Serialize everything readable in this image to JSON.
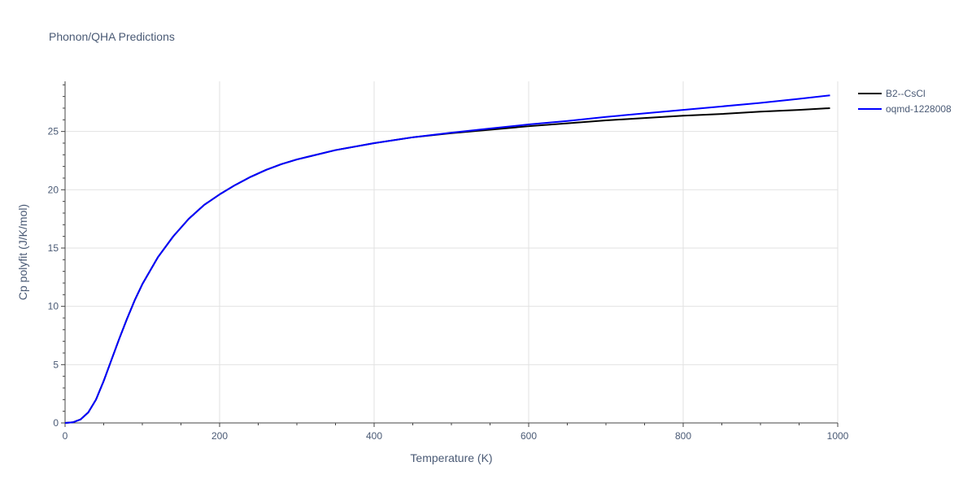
{
  "chart_data": {
    "type": "line",
    "title": "Phonon/QHA Predictions",
    "xlabel": "Temperature (K)",
    "ylabel": "Cp polyfit (J/K/mol)",
    "xlim": [
      0,
      1000
    ],
    "ylim": [
      0,
      29.3
    ],
    "x_major_ticks": [
      0,
      200,
      400,
      600,
      800,
      1000
    ],
    "x_minor_ticks": [
      50,
      100,
      150,
      250,
      300,
      350,
      450,
      500,
      550,
      650,
      700,
      750,
      850,
      900,
      950
    ],
    "y_major_ticks": [
      0,
      5,
      10,
      15,
      20,
      25
    ],
    "y_minor_ticks": [
      1,
      2,
      3,
      4,
      6,
      7,
      8,
      9,
      11,
      12,
      13,
      14,
      16,
      17,
      18,
      19,
      21,
      22,
      23,
      24,
      26,
      27,
      28,
      29
    ],
    "grid": true,
    "legend_position": "top-right",
    "series": [
      {
        "name": "B2--CsCl",
        "color": "#000000",
        "x": [
          0,
          10,
          20,
          30,
          40,
          50,
          60,
          70,
          80,
          90,
          100,
          120,
          140,
          160,
          180,
          200,
          220,
          240,
          260,
          280,
          300,
          350,
          400,
          450,
          500,
          550,
          600,
          650,
          700,
          750,
          800,
          850,
          900,
          950,
          990
        ],
        "y": [
          0,
          0.05,
          0.3,
          0.9,
          2.0,
          3.6,
          5.4,
          7.2,
          8.9,
          10.5,
          11.9,
          14.2,
          16.0,
          17.5,
          18.7,
          19.6,
          20.4,
          21.1,
          21.7,
          22.2,
          22.6,
          23.4,
          24.0,
          24.5,
          24.85,
          25.15,
          25.45,
          25.7,
          25.95,
          26.15,
          26.35,
          26.5,
          26.7,
          26.85,
          27.0
        ]
      },
      {
        "name": "oqmd-1228008",
        "color": "#0000ff",
        "x": [
          0,
          10,
          20,
          30,
          40,
          50,
          60,
          70,
          80,
          90,
          100,
          120,
          140,
          160,
          180,
          200,
          220,
          240,
          260,
          280,
          300,
          350,
          400,
          450,
          500,
          550,
          600,
          650,
          700,
          750,
          800,
          850,
          900,
          950,
          990
        ],
        "y": [
          0,
          0.05,
          0.3,
          0.9,
          2.0,
          3.6,
          5.4,
          7.2,
          8.9,
          10.5,
          11.9,
          14.2,
          16.0,
          17.5,
          18.7,
          19.6,
          20.4,
          21.1,
          21.7,
          22.2,
          22.6,
          23.4,
          24.0,
          24.5,
          24.9,
          25.25,
          25.6,
          25.9,
          26.25,
          26.55,
          26.85,
          27.15,
          27.45,
          27.8,
          28.1
        ]
      }
    ]
  }
}
